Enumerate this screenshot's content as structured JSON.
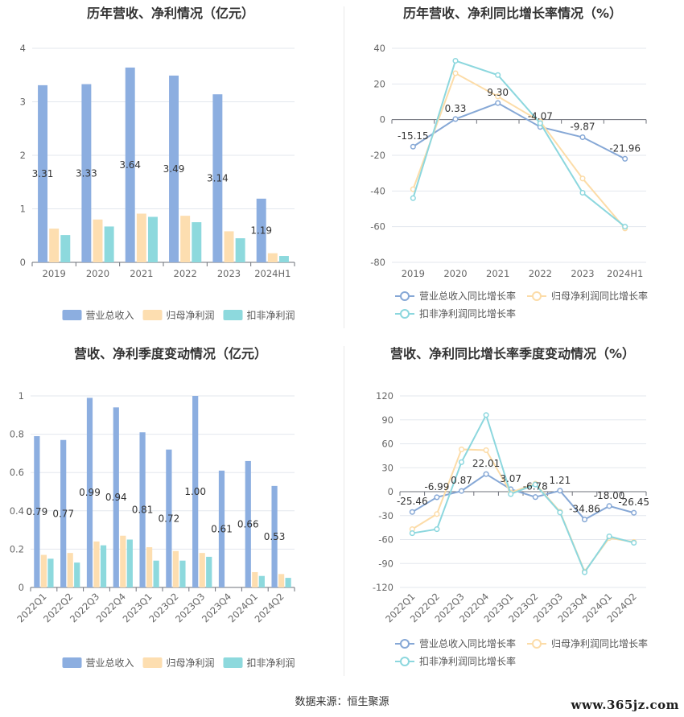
{
  "source_text": "数据来源：恒生聚源",
  "watermark": "www.365jz.com",
  "chart_data": [
    {
      "type": "bar",
      "title": "历年营收、净利情况（亿元）",
      "categories": [
        "2019",
        "2020",
        "2021",
        "2022",
        "2023",
        "2024H1"
      ],
      "ylim": [
        0,
        4
      ],
      "yticks": [
        0,
        1,
        2,
        3,
        4
      ],
      "series": [
        {
          "name": "营业总收入",
          "color": "#8caee0",
          "values": [
            3.31,
            3.33,
            3.64,
            3.49,
            3.14,
            1.19
          ],
          "labels": [
            "3.31",
            "3.33",
            "3.64",
            "3.49",
            "3.14",
            "1.19"
          ]
        },
        {
          "name": "归母净利润",
          "color": "#fddeb0",
          "values": [
            0.63,
            0.8,
            0.91,
            0.87,
            0.58,
            0.17
          ]
        },
        {
          "name": "扣非净利润",
          "color": "#8dd9dd",
          "values": [
            0.51,
            0.67,
            0.85,
            0.75,
            0.45,
            0.12
          ]
        }
      ],
      "grid": true,
      "legend": "bottom"
    },
    {
      "type": "line",
      "title": "历年营收、净利同比增长率情况（%）",
      "categories": [
        "2019",
        "2020",
        "2021",
        "2022",
        "2023",
        "2024H1"
      ],
      "ylim": [
        -80,
        40
      ],
      "yticks": [
        -80,
        -60,
        -40,
        -20,
        0,
        20,
        40
      ],
      "series": [
        {
          "name": "营业总收入同比增长率",
          "color": "#86a8d6",
          "values": [
            -15.15,
            0.33,
            9.3,
            -4.07,
            -9.87,
            -21.96
          ],
          "labels": [
            "-15.15",
            "0.33",
            "9.30",
            "-4.07",
            "-9.87",
            "-21.96"
          ]
        },
        {
          "name": "归母净利润同比增长率",
          "color": "#fcdca8",
          "values": [
            -39,
            26,
            13,
            -1,
            -33,
            -61
          ]
        },
        {
          "name": "扣非净利润同比增长率",
          "color": "#8cd7de",
          "values": [
            -44,
            33,
            25,
            -2,
            -41,
            -60
          ]
        }
      ],
      "grid": true,
      "legend": "bottom"
    },
    {
      "type": "bar",
      "title": "营收、净利季度变动情况（亿元）",
      "categories": [
        "2022Q1",
        "2022Q2",
        "2022Q3",
        "2022Q4",
        "2023Q1",
        "2023Q2",
        "2023Q3",
        "2023Q4",
        "2024Q1",
        "2024Q2"
      ],
      "ylim": [
        0,
        1
      ],
      "yticks": [
        0,
        0.2,
        0.4,
        0.6,
        0.8,
        1
      ],
      "series": [
        {
          "name": "营业总收入",
          "color": "#8caee0",
          "values": [
            0.79,
            0.77,
            0.99,
            0.94,
            0.81,
            0.72,
            1.0,
            0.61,
            0.66,
            0.53
          ],
          "labels": [
            "0.79",
            "0.77",
            "0.99",
            "0.94",
            "0.81",
            "0.72",
            "1.00",
            "0.61",
            "0.66",
            "0.53"
          ]
        },
        {
          "name": "归母净利润",
          "color": "#fddeb0",
          "values": [
            0.17,
            0.18,
            0.24,
            0.27,
            0.21,
            0.19,
            0.18,
            0,
            0.08,
            0.07
          ]
        },
        {
          "name": "扣非净利润",
          "color": "#8dd9dd",
          "values": [
            0.15,
            0.13,
            0.22,
            0.25,
            0.14,
            0.14,
            0.16,
            0,
            0.06,
            0.05
          ]
        }
      ],
      "grid": true,
      "legend": "bottom"
    },
    {
      "type": "line",
      "title": "营收、净利同比增长率季度变动情况（%）",
      "categories": [
        "2022Q1",
        "2022Q2",
        "2022Q3",
        "2022Q4",
        "2023Q1",
        "2023Q2",
        "2023Q3",
        "2023Q4",
        "2024Q1",
        "2024Q2"
      ],
      "ylim": [
        -120,
        120
      ],
      "yticks": [
        -120,
        -90,
        -60,
        -30,
        0,
        30,
        60,
        90,
        120
      ],
      "series": [
        {
          "name": "营业总收入同比增长率",
          "color": "#86a8d6",
          "values": [
            -25.46,
            -6.99,
            0.87,
            22.01,
            3.07,
            -6.78,
            1.21,
            -34.86,
            -18.0,
            -26.45
          ],
          "labels": [
            "-25.46",
            "-6.99",
            "0.87",
            "22.01",
            "3.07",
            "-6.78",
            "1.21",
            "-34.86",
            "-18.00",
            "-26.45"
          ]
        },
        {
          "name": "归母净利润同比增长率",
          "color": "#fcdca8",
          "values": [
            -47,
            -28,
            53,
            52,
            -1,
            10,
            -25,
            -100,
            -58,
            -63
          ]
        },
        {
          "name": "扣非净利润同比增长率",
          "color": "#8cd7de",
          "values": [
            -52,
            -47,
            37,
            96,
            -3,
            9,
            -26,
            -101,
            -56,
            -64
          ]
        }
      ],
      "grid": true,
      "legend": "bottom"
    }
  ]
}
